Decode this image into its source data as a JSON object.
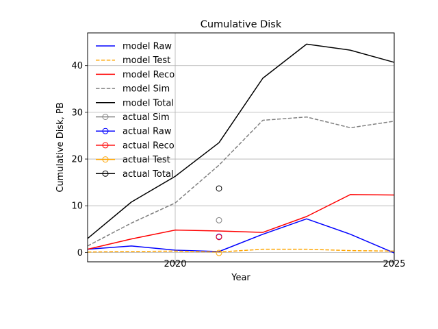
{
  "chart_data": {
    "type": "line",
    "title": "Cumulative Disk",
    "xlabel": "Year",
    "ylabel": "Cumulative Disk, PB",
    "xlim": [
      2018,
      2025
    ],
    "ylim": [
      -2,
      47
    ],
    "xticks": [
      2020,
      2025
    ],
    "yticks": [
      0,
      10,
      20,
      30,
      40
    ],
    "xtick_labels": [
      "2020",
      "2025"
    ],
    "ytick_labels": [
      "0",
      "10",
      "20",
      "30",
      "40"
    ],
    "grid": true,
    "legend_position": "top-left",
    "x": [
      2018,
      2019,
      2020,
      2021,
      2022,
      2023,
      2024,
      2025
    ],
    "series": [
      {
        "name": "model Raw",
        "kind": "line",
        "color": "#0000ff",
        "dash": "solid",
        "values": [
          0.7,
          1.4,
          0.5,
          0.2,
          3.9,
          7.2,
          3.9,
          -0.1
        ]
      },
      {
        "name": "model Test",
        "kind": "line",
        "color": "#ffa500",
        "dash": "dashed",
        "values": [
          0.1,
          0.2,
          0.3,
          0.1,
          0.7,
          0.7,
          0.4,
          0.3
        ]
      },
      {
        "name": "model Reco",
        "kind": "line",
        "color": "#ff0000",
        "dash": "solid",
        "values": [
          0.7,
          2.9,
          4.8,
          4.6,
          4.3,
          7.7,
          12.4,
          12.3
        ]
      },
      {
        "name": "model Sim",
        "kind": "line",
        "color": "#808080",
        "dash": "dashed",
        "values": [
          1.4,
          6.3,
          10.6,
          18.7,
          28.3,
          29.0,
          26.7,
          28.1
        ]
      },
      {
        "name": "model Total",
        "kind": "line",
        "color": "#000000",
        "dash": "solid",
        "values": [
          3.0,
          10.8,
          16.3,
          23.5,
          37.3,
          44.6,
          43.3,
          40.7
        ]
      },
      {
        "name": "actual Sim",
        "kind": "marker",
        "color": "#808080",
        "x": 2021,
        "value": 6.9
      },
      {
        "name": "actual Raw",
        "kind": "marker",
        "color": "#0000ff",
        "x": 2021,
        "value": 3.4
      },
      {
        "name": "actual Reco",
        "kind": "marker",
        "color": "#ff0000",
        "x": 2021,
        "value": 3.3
      },
      {
        "name": "actual Test",
        "kind": "marker",
        "color": "#ffa500",
        "x": 2021,
        "value": -0.1
      },
      {
        "name": "actual Total",
        "kind": "marker",
        "color": "#000000",
        "x": 2021,
        "value": 13.7
      }
    ]
  }
}
